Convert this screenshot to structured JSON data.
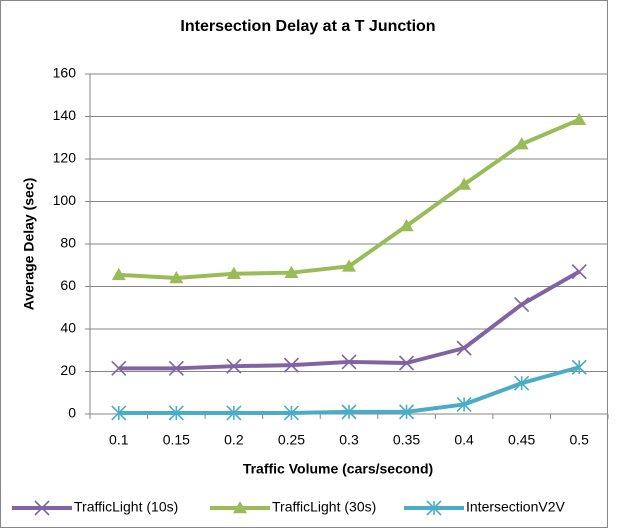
{
  "chart_data": {
    "type": "line",
    "title": "Intersection Delay at a T Junction",
    "x_label": "Traffic Volume (cars/second)",
    "y_label": "Average Delay (sec)",
    "categories": [
      "0.1",
      "0.15",
      "0.2",
      "0.25",
      "0.3",
      "0.35",
      "0.4",
      "0.45",
      "0.5"
    ],
    "series": [
      {
        "name": "TrafficLight (10s)",
        "color": "#8064a2",
        "marker": "x",
        "values": [
          21.5,
          21.5,
          22.5,
          23,
          24.5,
          24,
          31,
          51.5,
          67
        ]
      },
      {
        "name": "TrafficLight (30s)",
        "color": "#9bbb59",
        "marker": "triangle",
        "values": [
          65.5,
          64,
          66,
          66.5,
          69.5,
          88.5,
          108,
          127,
          138.5
        ]
      },
      {
        "name": "IntersectionV2V",
        "color": "#4bacc6",
        "marker": "asterisk",
        "values": [
          0.5,
          0.5,
          0.5,
          0.5,
          1,
          1,
          4.5,
          14.5,
          22
        ]
      }
    ],
    "ylim": [
      0,
      160
    ],
    "yticks": [
      0,
      20,
      40,
      60,
      80,
      100,
      120,
      140,
      160
    ],
    "grid": true,
    "legend": "bottom"
  }
}
